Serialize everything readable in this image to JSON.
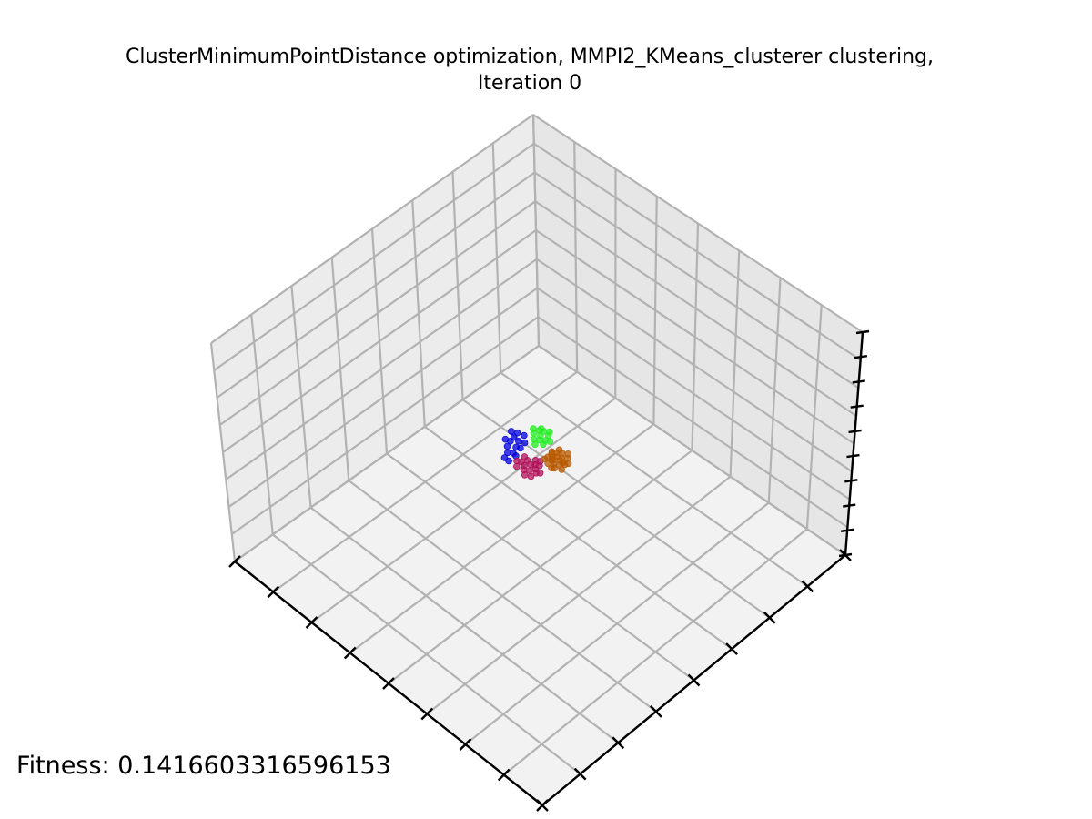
{
  "chart_data": {
    "type": "scatter",
    "title_line1": "ClusterMinimumPointDistance optimization, MMPI2_KMeans_clusterer clustering,",
    "title_line2": "Iteration 0",
    "xlabel": "",
    "ylabel": "",
    "zlabel": "",
    "grid": true,
    "series": [
      {
        "color": "#0000dd",
        "points": [
          [
            -1.3,
            0.1,
            0.0
          ],
          [
            -1.1,
            0.3,
            0.0
          ],
          [
            -0.9,
            0.2,
            0.0
          ],
          [
            -0.8,
            0.8,
            0.0
          ],
          [
            -0.6,
            0.95,
            0.0
          ],
          [
            -0.5,
            0.7,
            0.0
          ],
          [
            -0.7,
            0.45,
            0.0
          ],
          [
            -1.0,
            0.6,
            0.0
          ],
          [
            -0.4,
            1.1,
            0.0
          ],
          [
            -0.2,
            0.9,
            0.0
          ],
          [
            -1.2,
            -0.1,
            0.0
          ],
          [
            -0.6,
            1.25,
            0.0
          ],
          [
            -0.85,
            0.05,
            0.0
          ],
          [
            -0.3,
            0.55,
            0.0
          ],
          [
            -0.95,
            0.95,
            0.0
          ],
          [
            -0.55,
            0.35,
            0.0
          ]
        ]
      },
      {
        "color": "#22ee22",
        "points": [
          [
            0.2,
            0.9,
            0.0
          ],
          [
            0.4,
            0.7,
            0.0
          ],
          [
            0.6,
            0.85,
            0.0
          ],
          [
            0.3,
            0.5,
            0.0
          ],
          [
            0.5,
            0.4,
            0.0
          ],
          [
            0.1,
            0.6,
            0.0
          ],
          [
            0.7,
            0.6,
            0.0
          ],
          [
            0.25,
            1.1,
            0.0
          ],
          [
            0.55,
            1.0,
            0.0
          ],
          [
            0.35,
            0.25,
            0.0
          ],
          [
            0.8,
            0.75,
            0.0
          ],
          [
            0.05,
            0.35,
            0.0
          ],
          [
            0.45,
            0.95,
            0.0
          ],
          [
            0.65,
            0.3,
            0.0
          ]
        ]
      },
      {
        "color": "#b0105a",
        "points": [
          [
            -0.9,
            -0.2,
            0.0
          ],
          [
            -0.7,
            -0.5,
            0.0
          ],
          [
            -0.5,
            -0.3,
            0.0
          ],
          [
            -0.3,
            -0.6,
            0.0
          ],
          [
            -0.6,
            -0.8,
            0.0
          ],
          [
            -0.4,
            -1.0,
            0.0
          ],
          [
            -0.8,
            -0.7,
            0.0
          ],
          [
            -0.2,
            -0.4,
            0.0
          ],
          [
            -0.55,
            -0.1,
            0.0
          ],
          [
            -1.0,
            -0.45,
            0.0
          ],
          [
            -0.35,
            -0.8,
            0.0
          ],
          [
            -0.65,
            -1.1,
            0.0
          ],
          [
            -0.15,
            -0.7,
            0.0
          ],
          [
            -0.75,
            -0.3,
            0.0
          ],
          [
            -0.45,
            -0.55,
            0.0
          ],
          [
            -0.25,
            -1.05,
            0.0
          ],
          [
            -0.85,
            -0.95,
            0.0
          ],
          [
            -0.05,
            -0.5,
            0.0
          ]
        ]
      },
      {
        "color": "#b85a00",
        "points": [
          [
            0.3,
            -0.4,
            0.0
          ],
          [
            0.5,
            -0.6,
            0.0
          ],
          [
            0.7,
            -0.3,
            0.0
          ],
          [
            0.4,
            -0.8,
            0.0
          ],
          [
            0.6,
            -0.9,
            0.0
          ],
          [
            0.8,
            -0.6,
            0.0
          ],
          [
            0.2,
            -0.7,
            0.0
          ],
          [
            0.9,
            -0.4,
            0.0
          ],
          [
            0.55,
            -0.2,
            0.0
          ],
          [
            0.35,
            -1.0,
            0.0
          ],
          [
            0.75,
            -0.85,
            0.0
          ],
          [
            1.0,
            -0.7,
            0.0
          ],
          [
            0.45,
            -0.45,
            0.0
          ],
          [
            0.65,
            -0.5,
            0.0
          ],
          [
            0.85,
            -0.2,
            0.0
          ],
          [
            0.25,
            -0.95,
            0.0
          ],
          [
            0.95,
            -0.95,
            0.0
          ],
          [
            0.15,
            -0.45,
            0.0
          ],
          [
            0.6,
            -1.15,
            0.0
          ],
          [
            1.1,
            -0.5,
            0.0
          ],
          [
            0.5,
            -0.3,
            0.0
          ],
          [
            0.7,
            -0.7,
            0.0
          ],
          [
            0.4,
            -0.6,
            0.0
          ],
          [
            0.8,
            -0.95,
            0.0
          ]
        ]
      }
    ]
  },
  "fitness": {
    "label": "Fitness: 0.1416603316596153"
  }
}
